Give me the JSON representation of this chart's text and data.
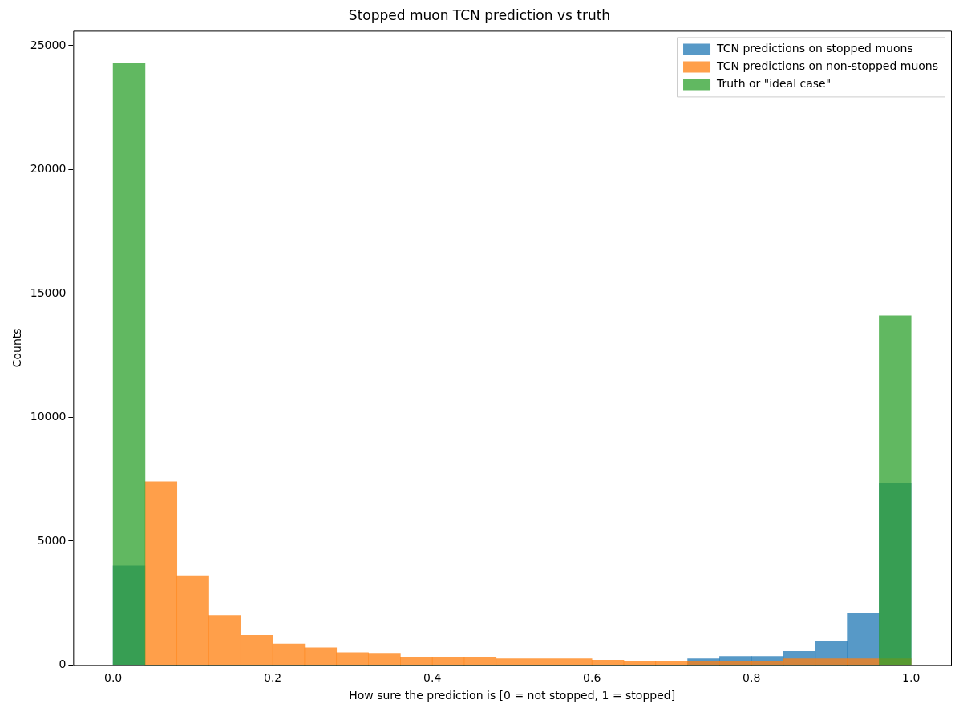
{
  "chart_data": {
    "type": "histogram",
    "title": "Stopped muon TCN prediction vs truth",
    "xlabel": "How sure the prediction is [0 = not stopped, 1 = stopped]",
    "ylabel": "Counts",
    "bins": [
      0,
      0.04,
      0.08,
      0.12,
      0.16,
      0.2,
      0.24,
      0.28,
      0.32,
      0.36,
      0.4,
      0.44,
      0.48,
      0.52,
      0.56,
      0.6,
      0.64,
      0.68,
      0.72,
      0.76,
      0.8,
      0.84,
      0.88,
      0.92,
      0.96,
      1
    ],
    "series": [
      {
        "name": "TCN predictions on stopped muons",
        "color": "#1f77b4",
        "values": [
          4000,
          null,
          null,
          null,
          null,
          null,
          null,
          null,
          null,
          null,
          null,
          null,
          null,
          null,
          null,
          null,
          null,
          null,
          250,
          350,
          350,
          550,
          950,
          2100,
          7350
        ]
      },
      {
        "name": "TCN predictions on non-stopped muons",
        "color": "#ff7f0e",
        "values": [
          null,
          7400,
          3600,
          2000,
          1200,
          850,
          700,
          500,
          450,
          300,
          300,
          300,
          250,
          250,
          250,
          200,
          150,
          150,
          150,
          150,
          150,
          250,
          250,
          250,
          250
        ]
      },
      {
        "name": "Truth or \"ideal case\"",
        "color": "#2ca02c",
        "values": [
          24300,
          0,
          0,
          0,
          0,
          0,
          0,
          0,
          0,
          0,
          0,
          0,
          0,
          0,
          0,
          0,
          0,
          0,
          0,
          0,
          0,
          0,
          0,
          0,
          14100
        ]
      }
    ],
    "xlim": [
      -0.05,
      1.05
    ],
    "xticks": [
      {
        "value": 0,
        "label": "0.0"
      },
      0.2,
      0.4,
      0.6,
      0.8,
      {
        "value": 1,
        "label": "1.0"
      }
    ],
    "ylim": [
      0,
      25600
    ],
    "yticks": [
      0,
      5000,
      10000,
      15000,
      20000,
      25000
    ],
    "grid": false,
    "legend": "top right"
  }
}
